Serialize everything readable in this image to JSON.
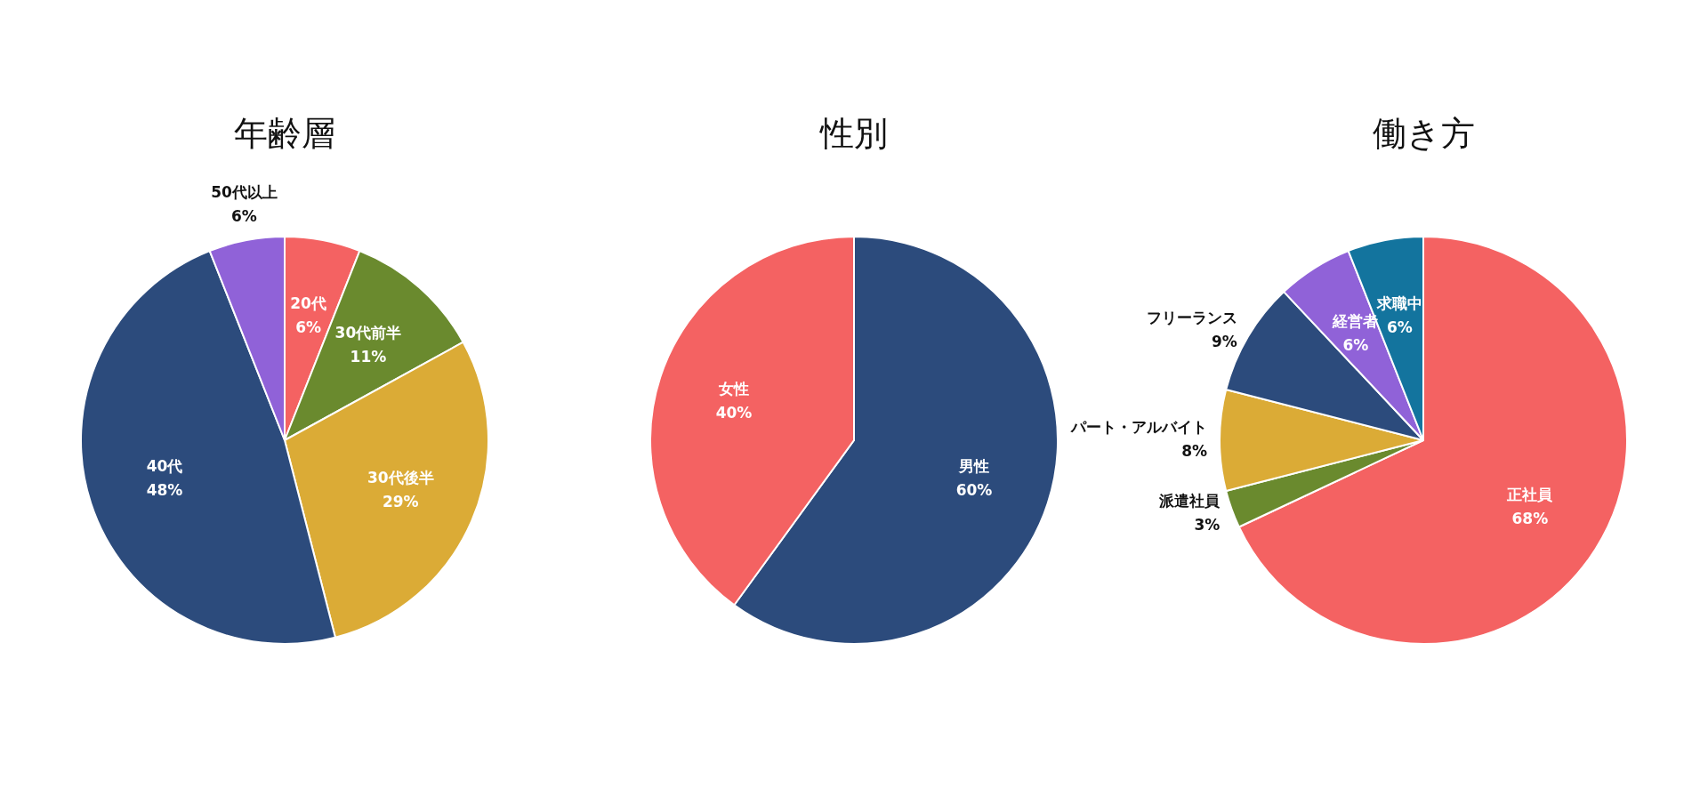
{
  "chart_data": [
    {
      "type": "pie",
      "title": "年齢層",
      "categories": [
        "20代",
        "30代前半",
        "30代後半",
        "40代",
        "50代以上"
      ],
      "values": [
        6,
        11,
        29,
        48,
        6
      ],
      "colors": [
        "#f46262",
        "#6a8a2e",
        "#dbab36",
        "#2c4b7c",
        "#9062d8"
      ],
      "value_labels": [
        "6%",
        "11%",
        "29%",
        "48%",
        "6%"
      ],
      "legend": false
    },
    {
      "type": "pie",
      "title": "性別",
      "categories": [
        "男性",
        "女性"
      ],
      "values": [
        60,
        40
      ],
      "colors": [
        "#2c4b7c",
        "#f46262"
      ],
      "value_labels": [
        "60%",
        "40%"
      ],
      "legend": false
    },
    {
      "type": "pie",
      "title": "働き方",
      "categories": [
        "正社員",
        "派遣社員",
        "パート・アルバイト",
        "フリーランス",
        "経営者",
        "求職中"
      ],
      "values": [
        68,
        3,
        8,
        9,
        6,
        6
      ],
      "colors": [
        "#f46262",
        "#6a8a2e",
        "#dbab36",
        "#2c4b7c",
        "#9062d8",
        "#13749e"
      ],
      "value_labels": [
        "68%",
        "3%",
        "8%",
        "9%",
        "6%",
        "6%"
      ],
      "legend": false
    }
  ]
}
